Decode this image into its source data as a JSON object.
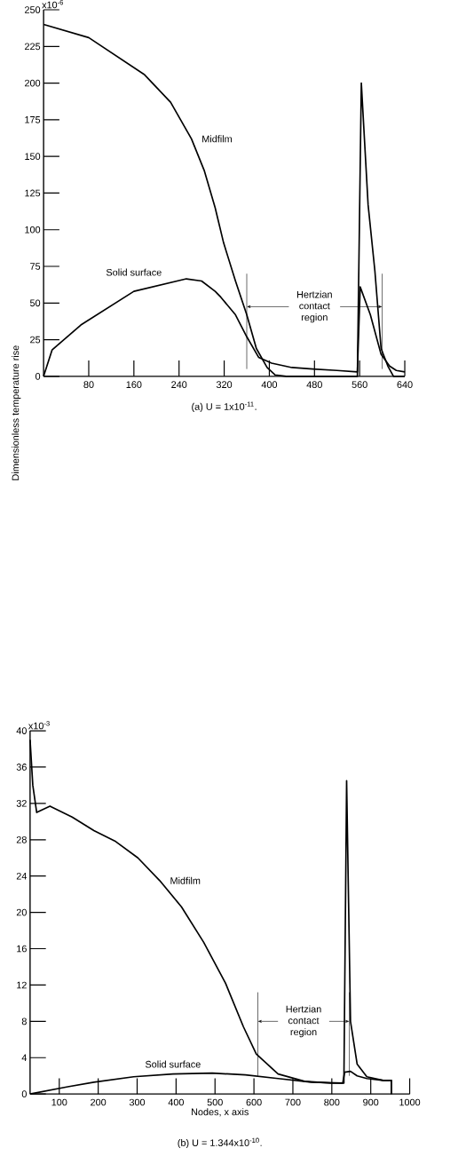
{
  "chart_data": [
    {
      "type": "line",
      "title": "(a) U = 1x10$^{-11}$.",
      "ylabel": "Dimensionless temperature rise",
      "xlim": [
        0,
        640
      ],
      "ylim": [
        0,
        250
      ],
      "xticks": [
        80,
        160,
        240,
        320,
        400,
        480,
        560,
        640
      ],
      "yticks": [
        0,
        25,
        50,
        75,
        100,
        125,
        150,
        175,
        200,
        225,
        250
      ],
      "annotations": [
        "x10$^{-6}$"
      ],
      "series": [
        {
          "name": "Midfilm",
          "color": "#000000",
          "x": [
            0,
            80,
            178,
            225,
            262,
            285,
            304,
            319,
            340,
            360,
            377,
            396,
            410,
            430,
            480,
            556,
            563,
            575,
            587,
            598,
            610,
            620,
            640
          ],
          "values": [
            240,
            231,
            206,
            187,
            162,
            140,
            115,
            91,
            65,
            42,
            19,
            6,
            1,
            0,
            0,
            0,
            200,
            117,
            72,
            19,
            7,
            0,
            0
          ]
        },
        {
          "name": "Solid surface",
          "color": "#000000",
          "x": [
            0,
            15,
            66,
            160,
            253,
            280,
            304,
            314,
            340,
            360,
            381,
            404,
            440,
            477,
            520,
            556,
            561,
            579,
            598,
            613,
            625,
            640
          ],
          "values": [
            0,
            18,
            35,
            58,
            66.5,
            65,
            58,
            54,
            42,
            27,
            13,
            9,
            6,
            5,
            4,
            3,
            61,
            42,
            15,
            7,
            4,
            3
          ]
        }
      ],
      "ref_lines": [
        {
          "axis": "x",
          "value": 360,
          "label": "Hertzian contact region"
        },
        {
          "axis": "x",
          "value": 600
        }
      ],
      "legend": false,
      "grid": false,
      "marker": "none",
      "line_style": "solid"
    },
    {
      "type": "line",
      "title": "(b) U = 1.344x10$^{-10}$.",
      "xlabel": "Nodes, x axis",
      "xlim": [
        25,
        1000
      ],
      "ylim": [
        0,
        40
      ],
      "xticks": [
        100,
        200,
        300,
        400,
        500,
        600,
        700,
        800,
        900,
        1000
      ],
      "yticks": [
        0,
        4,
        8,
        12,
        16,
        20,
        24,
        28,
        32,
        36,
        40
      ],
      "annotations": [
        "x10$^{-3}$"
      ],
      "series": [
        {
          "name": "Midfilm",
          "color": "#000000",
          "x": [
            25,
            32,
            42,
            76,
            133,
            189,
            245,
            302,
            358,
            414,
            471,
            527,
            573,
            606,
            662,
            730,
            797,
            831,
            838,
            848,
            865,
            890,
            932,
            953,
            953
          ],
          "values": [
            39,
            34,
            31,
            31.7,
            30.5,
            29,
            27.8,
            26,
            23.5,
            20.6,
            16.7,
            12.2,
            7.4,
            4.4,
            2.2,
            1.4,
            1.2,
            1.2,
            34.5,
            8,
            3.3,
            1.9,
            1.5,
            1.5,
            0
          ]
        },
        {
          "name": "Solid surface",
          "color": "#000000",
          "x": [
            25,
            122,
            189,
            291,
            392,
            493,
            578,
            662,
            747,
            828,
            833,
            848,
            865,
            890,
            932,
            953,
            953
          ],
          "values": [
            0,
            0.8,
            1.3,
            1.9,
            2.2,
            2.3,
            2.1,
            1.7,
            1.3,
            1.2,
            2.4,
            2.5,
            2,
            1.7,
            1.5,
            1.5,
            0
          ]
        }
      ],
      "ref_lines": [
        {
          "axis": "x",
          "value": 610,
          "label": "Hertzian contact region"
        },
        {
          "axis": "x",
          "value": 845
        }
      ],
      "legend": false,
      "grid": false,
      "marker": "none",
      "line_style": "solid"
    }
  ]
}
